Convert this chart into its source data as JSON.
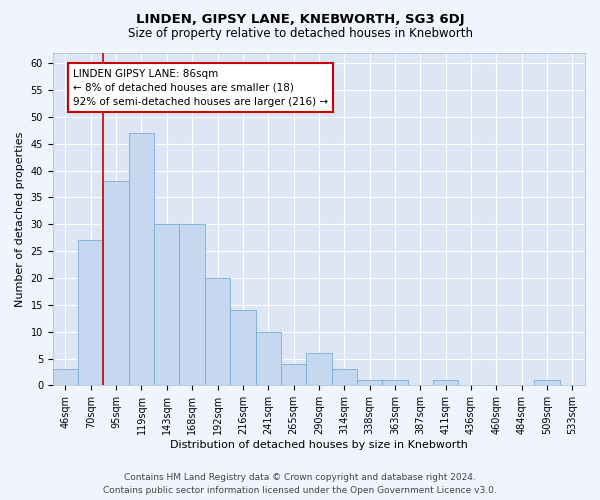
{
  "title": "LINDEN, GIPSY LANE, KNEBWORTH, SG3 6DJ",
  "subtitle": "Size of property relative to detached houses in Knebworth",
  "xlabel": "Distribution of detached houses by size in Knebworth",
  "ylabel": "Number of detached properties",
  "categories": [
    "46sqm",
    "70sqm",
    "95sqm",
    "119sqm",
    "143sqm",
    "168sqm",
    "192sqm",
    "216sqm",
    "241sqm",
    "265sqm",
    "290sqm",
    "314sqm",
    "338sqm",
    "363sqm",
    "387sqm",
    "411sqm",
    "436sqm",
    "460sqm",
    "484sqm",
    "509sqm",
    "533sqm"
  ],
  "values": [
    3,
    27,
    38,
    47,
    30,
    30,
    20,
    14,
    10,
    4,
    6,
    3,
    1,
    1,
    0,
    1,
    0,
    0,
    0,
    1,
    0
  ],
  "bar_color": "#c5d8f0",
  "bar_edge_color": "#7aadd4",
  "vline_color": "#cc0000",
  "annotation_text": "LINDEN GIPSY LANE: 86sqm\n← 8% of detached houses are smaller (18)\n92% of semi-detached houses are larger (216) →",
  "annotation_box_color": "#ffffff",
  "annotation_box_edge": "#cc0000",
  "ylim": [
    0,
    62
  ],
  "yticks": [
    0,
    5,
    10,
    15,
    20,
    25,
    30,
    35,
    40,
    45,
    50,
    55,
    60
  ],
  "footer_line1": "Contains HM Land Registry data © Crown copyright and database right 2024.",
  "footer_line2": "Contains public sector information licensed under the Open Government Licence v3.0.",
  "background_color": "#f0f4fc",
  "plot_bg_color": "#dce6f5",
  "grid_color": "#ffffff",
  "title_fontsize": 9.5,
  "subtitle_fontsize": 8.5,
  "axis_label_fontsize": 8,
  "tick_fontsize": 7,
  "annotation_fontsize": 7.5,
  "footer_fontsize": 6.5
}
